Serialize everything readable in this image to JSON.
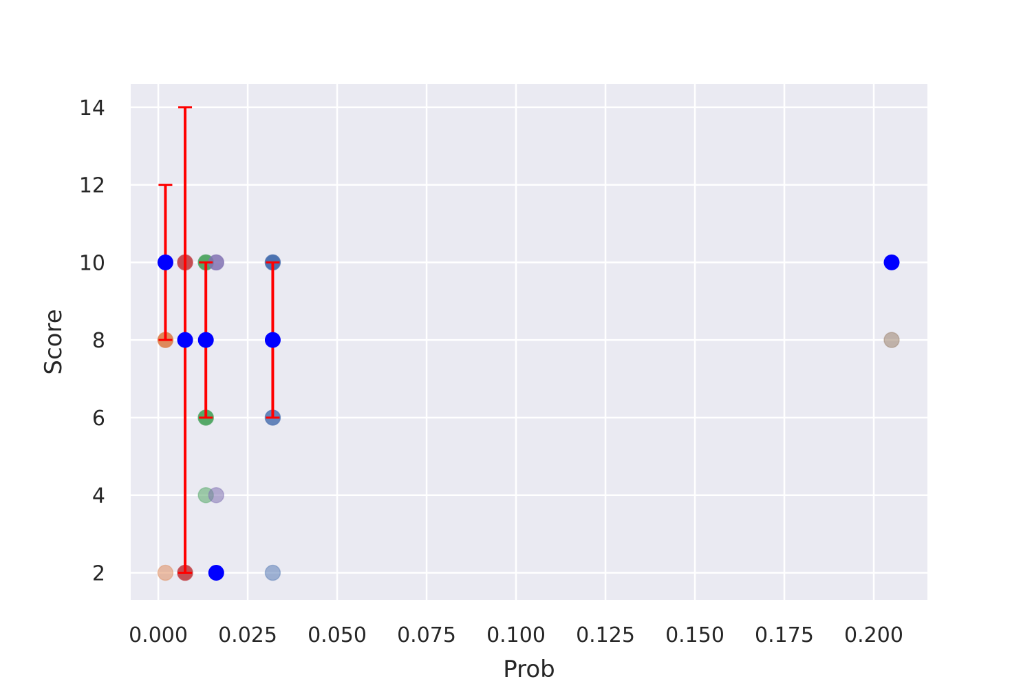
{
  "chart_data": {
    "type": "scatter",
    "title": "",
    "xlabel": "Prob",
    "ylabel": "Score",
    "xlim": [
      -0.0077,
      0.215
    ],
    "ylim": [
      1.3,
      14.6
    ],
    "grid": true,
    "background": "#eaeaf2",
    "grid_color": "#ffffff",
    "x_ticks": [
      0.0,
      0.025,
      0.05,
      0.075,
      0.1,
      0.125,
      0.15,
      0.175,
      0.2
    ],
    "x_tick_labels": [
      "0.000",
      "0.025",
      "0.050",
      "0.075",
      "0.100",
      "0.125",
      "0.150",
      "0.175",
      "0.200"
    ],
    "y_ticks": [
      2,
      4,
      6,
      8,
      10,
      12,
      14
    ],
    "y_tick_labels": [
      "2",
      "4",
      "6",
      "8",
      "10",
      "12",
      "14"
    ],
    "series": [
      {
        "color": "#4c72b0",
        "x": 0.032,
        "points": [
          {
            "y": 10,
            "alpha": 1.0
          },
          {
            "y": 6,
            "alpha": 0.85
          },
          {
            "y": 2,
            "alpha": 0.5
          }
        ]
      },
      {
        "color": "#dd8452",
        "x": 0.002,
        "points": [
          {
            "y": 8,
            "alpha": 0.95
          },
          {
            "y": 2,
            "alpha": 0.5
          }
        ]
      },
      {
        "color": "#55a868",
        "x": 0.0133,
        "points": [
          {
            "y": 10,
            "alpha": 1.0
          },
          {
            "y": 6,
            "alpha": 1.0
          },
          {
            "y": 4,
            "alpha": 0.55
          }
        ]
      },
      {
        "color": "#c44e52",
        "x": 0.0075,
        "points": [
          {
            "y": 10,
            "alpha": 1.0
          },
          {
            "y": 2,
            "alpha": 1.0
          }
        ]
      },
      {
        "color": "#8172b3",
        "x": 0.0162,
        "points": [
          {
            "y": 10,
            "alpha": 0.85
          },
          {
            "y": 4,
            "alpha": 0.55
          }
        ]
      },
      {
        "color": "#937860",
        "x": 0.205,
        "points": [
          {
            "y": 8,
            "alpha": 0.5
          }
        ]
      }
    ],
    "means": {
      "color": "#0000ff",
      "points": [
        {
          "x": 0.002,
          "y": 10
        },
        {
          "x": 0.0075,
          "y": 8
        },
        {
          "x": 0.0133,
          "y": 8
        },
        {
          "x": 0.0162,
          "y": 2
        },
        {
          "x": 0.032,
          "y": 8
        },
        {
          "x": 0.205,
          "y": 10
        }
      ]
    },
    "error_bars": {
      "color": "#ff0000",
      "bars": [
        {
          "x": 0.002,
          "low": 8,
          "high": 12
        },
        {
          "x": 0.0075,
          "low": 2,
          "high": 14
        },
        {
          "x": 0.0133,
          "low": 6,
          "high": 10
        },
        {
          "x": 0.032,
          "low": 6,
          "high": 10
        }
      ]
    }
  }
}
